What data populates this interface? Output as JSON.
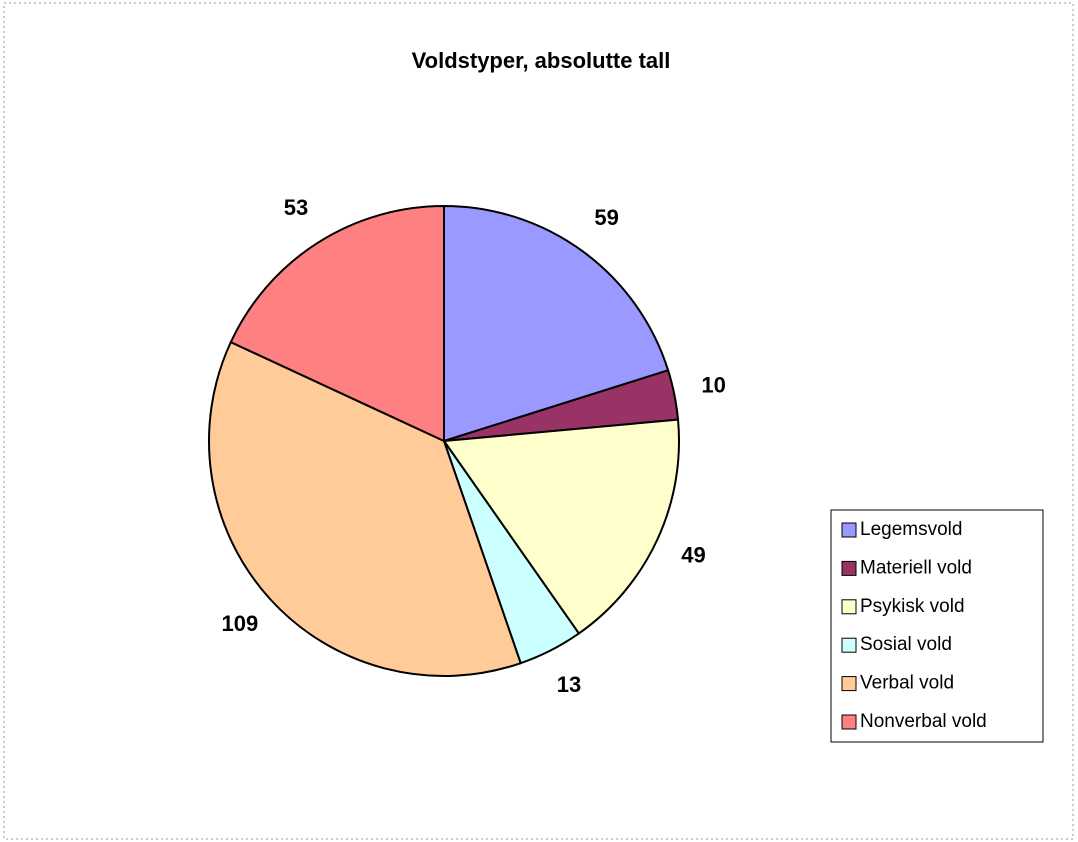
{
  "chart_data": {
    "type": "pie",
    "title": "Voldstyper, absolutte tall",
    "categories": [
      "Legemsvold",
      "Materiell vold",
      "Psykisk vold",
      "Sosial vold",
      "Verbal vold",
      "Nonverbal vold"
    ],
    "values": [
      59,
      10,
      49,
      13,
      109,
      53
    ],
    "colors": [
      "#9999ff",
      "#993366",
      "#ffffcc",
      "#ccffff",
      "#ffcc99",
      "#ff8080"
    ],
    "legend": "right"
  }
}
